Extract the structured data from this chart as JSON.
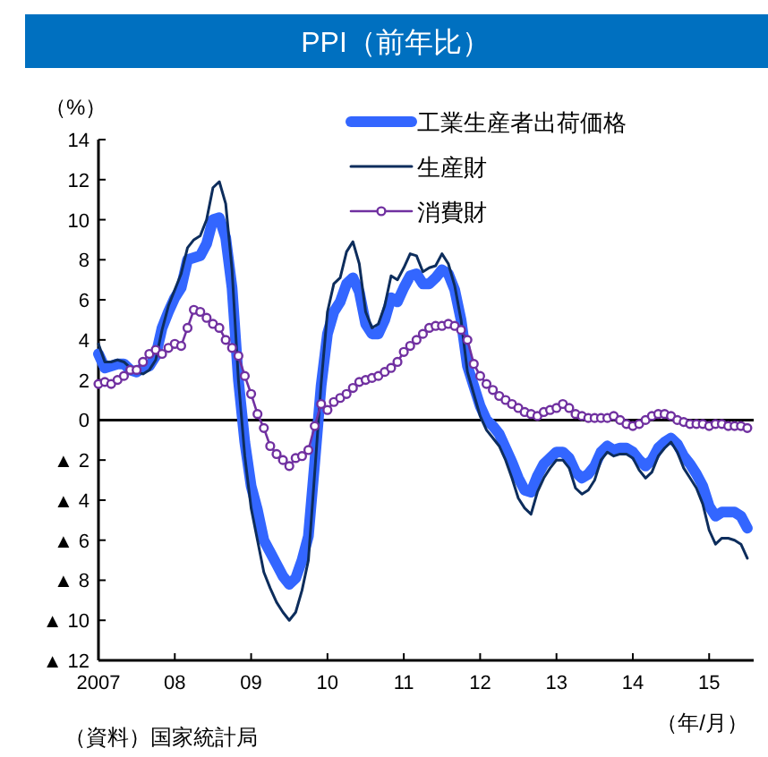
{
  "chart_data": {
    "type": "line",
    "title": "PPI（前年比）",
    "ylabel": "（%）",
    "xlabel": "（年/月）",
    "annotations": [
      "（資料）国家統計局"
    ],
    "legend": "top right",
    "x": [
      "2007-01",
      "2007-02",
      "2007-03",
      "2007-04",
      "2007-05",
      "2007-06",
      "2007-07",
      "2007-08",
      "2007-09",
      "2007-10",
      "2007-11",
      "2007-12",
      "2008-01",
      "2008-02",
      "2008-03",
      "2008-04",
      "2008-05",
      "2008-06",
      "2008-07",
      "2008-08",
      "2008-09",
      "2008-10",
      "2008-11",
      "2008-12",
      "2009-01",
      "2009-02",
      "2009-03",
      "2009-04",
      "2009-05",
      "2009-06",
      "2009-07",
      "2009-08",
      "2009-09",
      "2009-10",
      "2009-11",
      "2009-12",
      "2010-01",
      "2010-02",
      "2010-03",
      "2010-04",
      "2010-05",
      "2010-06",
      "2010-07",
      "2010-08",
      "2010-09",
      "2010-10",
      "2010-11",
      "2010-12",
      "2011-01",
      "2011-02",
      "2011-03",
      "2011-04",
      "2011-05",
      "2011-06",
      "2011-07",
      "2011-08",
      "2011-09",
      "2011-10",
      "2011-11",
      "2011-12",
      "2012-01",
      "2012-02",
      "2012-03",
      "2012-04",
      "2012-05",
      "2012-06",
      "2012-07",
      "2012-08",
      "2012-09",
      "2012-10",
      "2012-11",
      "2012-12",
      "2013-01",
      "2013-02",
      "2013-03",
      "2013-04",
      "2013-05",
      "2013-06",
      "2013-07",
      "2013-08",
      "2013-09",
      "2013-10",
      "2013-11",
      "2013-12",
      "2014-01",
      "2014-02",
      "2014-03",
      "2014-04",
      "2014-05",
      "2014-06",
      "2014-07",
      "2014-08",
      "2014-09",
      "2014-10",
      "2014-11",
      "2014-12",
      "2015-01",
      "2015-02",
      "2015-03",
      "2015-04",
      "2015-05",
      "2015-06",
      "2015-07"
    ],
    "series": [
      {
        "name": "工業生産者出荷価格",
        "color": "#3366ff",
        "marker": "none",
        "values": [
          3.3,
          2.6,
          2.7,
          2.8,
          2.8,
          2.5,
          2.4,
          2.6,
          2.7,
          3.2,
          4.6,
          5.4,
          6.1,
          6.6,
          8.0,
          8.1,
          8.2,
          8.8,
          10.0,
          10.1,
          9.1,
          6.6,
          2.0,
          -1.1,
          -3.3,
          -4.5,
          -6.0,
          -6.6,
          -7.2,
          -7.8,
          -8.2,
          -7.9,
          -7.0,
          -5.8,
          -2.1,
          1.7,
          4.3,
          5.4,
          5.9,
          6.8,
          7.1,
          6.4,
          4.8,
          4.3,
          4.3,
          5.0,
          6.1,
          5.9,
          6.6,
          7.2,
          7.3,
          6.8,
          6.8,
          7.1,
          7.5,
          7.3,
          6.5,
          5.0,
          2.7,
          1.7,
          0.7,
          0.0,
          -0.3,
          -0.7,
          -1.4,
          -2.1,
          -2.9,
          -3.5,
          -3.6,
          -2.8,
          -2.2,
          -1.9,
          -1.6,
          -1.6,
          -1.9,
          -2.6,
          -2.9,
          -2.7,
          -2.3,
          -1.6,
          -1.3,
          -1.5,
          -1.4,
          -1.4,
          -1.6,
          -2.0,
          -2.3,
          -2.0,
          -1.4,
          -1.1,
          -0.9,
          -1.2,
          -1.8,
          -2.2,
          -2.7,
          -3.3,
          -4.3,
          -4.8,
          -4.6,
          -4.6,
          -4.6,
          -4.8,
          -5.4
        ]
      },
      {
        "name": "生産財",
        "color": "#0d2d5c",
        "marker": "none",
        "values": [
          3.8,
          2.9,
          2.9,
          3.0,
          2.9,
          2.6,
          2.4,
          2.3,
          2.5,
          3.0,
          4.5,
          5.7,
          6.5,
          7.3,
          8.6,
          9.0,
          9.2,
          10.0,
          11.6,
          11.9,
          10.8,
          7.5,
          2.0,
          -1.8,
          -4.4,
          -6.0,
          -7.6,
          -8.4,
          -9.1,
          -9.6,
          -10.0,
          -9.6,
          -8.5,
          -7.0,
          -2.6,
          1.8,
          5.4,
          6.8,
          7.1,
          8.4,
          8.9,
          7.8,
          5.4,
          4.6,
          4.8,
          5.7,
          7.2,
          7.0,
          7.6,
          8.3,
          8.2,
          7.4,
          7.6,
          7.7,
          8.3,
          7.8,
          6.7,
          5.0,
          2.4,
          1.3,
          0.2,
          -0.5,
          -0.9,
          -1.3,
          -2.0,
          -2.9,
          -3.9,
          -4.4,
          -4.7,
          -3.6,
          -2.9,
          -2.4,
          -2.0,
          -2.0,
          -2.4,
          -3.4,
          -3.7,
          -3.5,
          -3.0,
          -2.0,
          -1.6,
          -1.8,
          -1.7,
          -1.7,
          -1.9,
          -2.5,
          -2.9,
          -2.6,
          -1.8,
          -1.4,
          -1.1,
          -1.6,
          -2.4,
          -2.9,
          -3.4,
          -4.2,
          -5.5,
          -6.2,
          -5.9,
          -5.9,
          -6.0,
          -6.2,
          -6.9
        ]
      },
      {
        "name": "消費財",
        "color": "#7030a0",
        "marker": "circle",
        "values": [
          1.8,
          1.9,
          1.8,
          2.0,
          2.2,
          2.5,
          2.5,
          2.9,
          3.3,
          3.5,
          3.3,
          3.6,
          3.8,
          3.7,
          4.6,
          5.5,
          5.4,
          5.1,
          4.8,
          4.6,
          4.0,
          3.6,
          3.2,
          2.2,
          1.3,
          0.3,
          -0.4,
          -1.3,
          -1.7,
          -2.0,
          -2.3,
          -1.9,
          -1.8,
          -1.5,
          -0.3,
          0.8,
          0.5,
          0.9,
          1.1,
          1.3,
          1.6,
          1.9,
          2.0,
          2.1,
          2.2,
          2.4,
          2.6,
          2.9,
          3.4,
          3.7,
          4.0,
          4.3,
          4.6,
          4.7,
          4.7,
          4.8,
          4.7,
          4.5,
          4.0,
          2.8,
          2.2,
          1.8,
          1.5,
          1.2,
          1.0,
          0.8,
          0.6,
          0.4,
          0.3,
          0.2,
          0.4,
          0.5,
          0.6,
          0.8,
          0.6,
          0.3,
          0.2,
          0.1,
          0.1,
          0.1,
          0.1,
          0.2,
          0.0,
          -0.2,
          -0.3,
          -0.2,
          0.0,
          0.2,
          0.3,
          0.3,
          0.2,
          0.0,
          -0.1,
          -0.2,
          -0.2,
          -0.2,
          -0.3,
          -0.2,
          -0.2,
          -0.3,
          -0.3,
          -0.3,
          -0.4
        ]
      }
    ],
    "xlim": [
      "2007-01",
      "2015-08"
    ],
    "xticks": [
      {
        "value": "2007-01",
        "label": "2007"
      },
      {
        "value": "2008-01",
        "label": "08"
      },
      {
        "value": "2009-01",
        "label": "09"
      },
      {
        "value": "2010-01",
        "label": "10"
      },
      {
        "value": "2011-01",
        "label": "11"
      },
      {
        "value": "2012-01",
        "label": "12"
      },
      {
        "value": "2013-01",
        "label": "13"
      },
      {
        "value": "2014-01",
        "label": "14"
      },
      {
        "value": "2015-01",
        "label": "15"
      }
    ],
    "ylim": [
      -12,
      14
    ],
    "yticks": [
      {
        "value": -12,
        "label": "▲ 12"
      },
      {
        "value": -10,
        "label": "▲ 10"
      },
      {
        "value": -8,
        "label": "▲ 8"
      },
      {
        "value": -6,
        "label": "▲ 6"
      },
      {
        "value": -4,
        "label": "▲ 4"
      },
      {
        "value": -2,
        "label": "▲ 2"
      },
      0,
      2,
      4,
      6,
      8,
      10,
      12,
      14
    ],
    "ref_lines": [
      {
        "axis": "y",
        "value": 0,
        "color": "#000000"
      }
    ]
  }
}
